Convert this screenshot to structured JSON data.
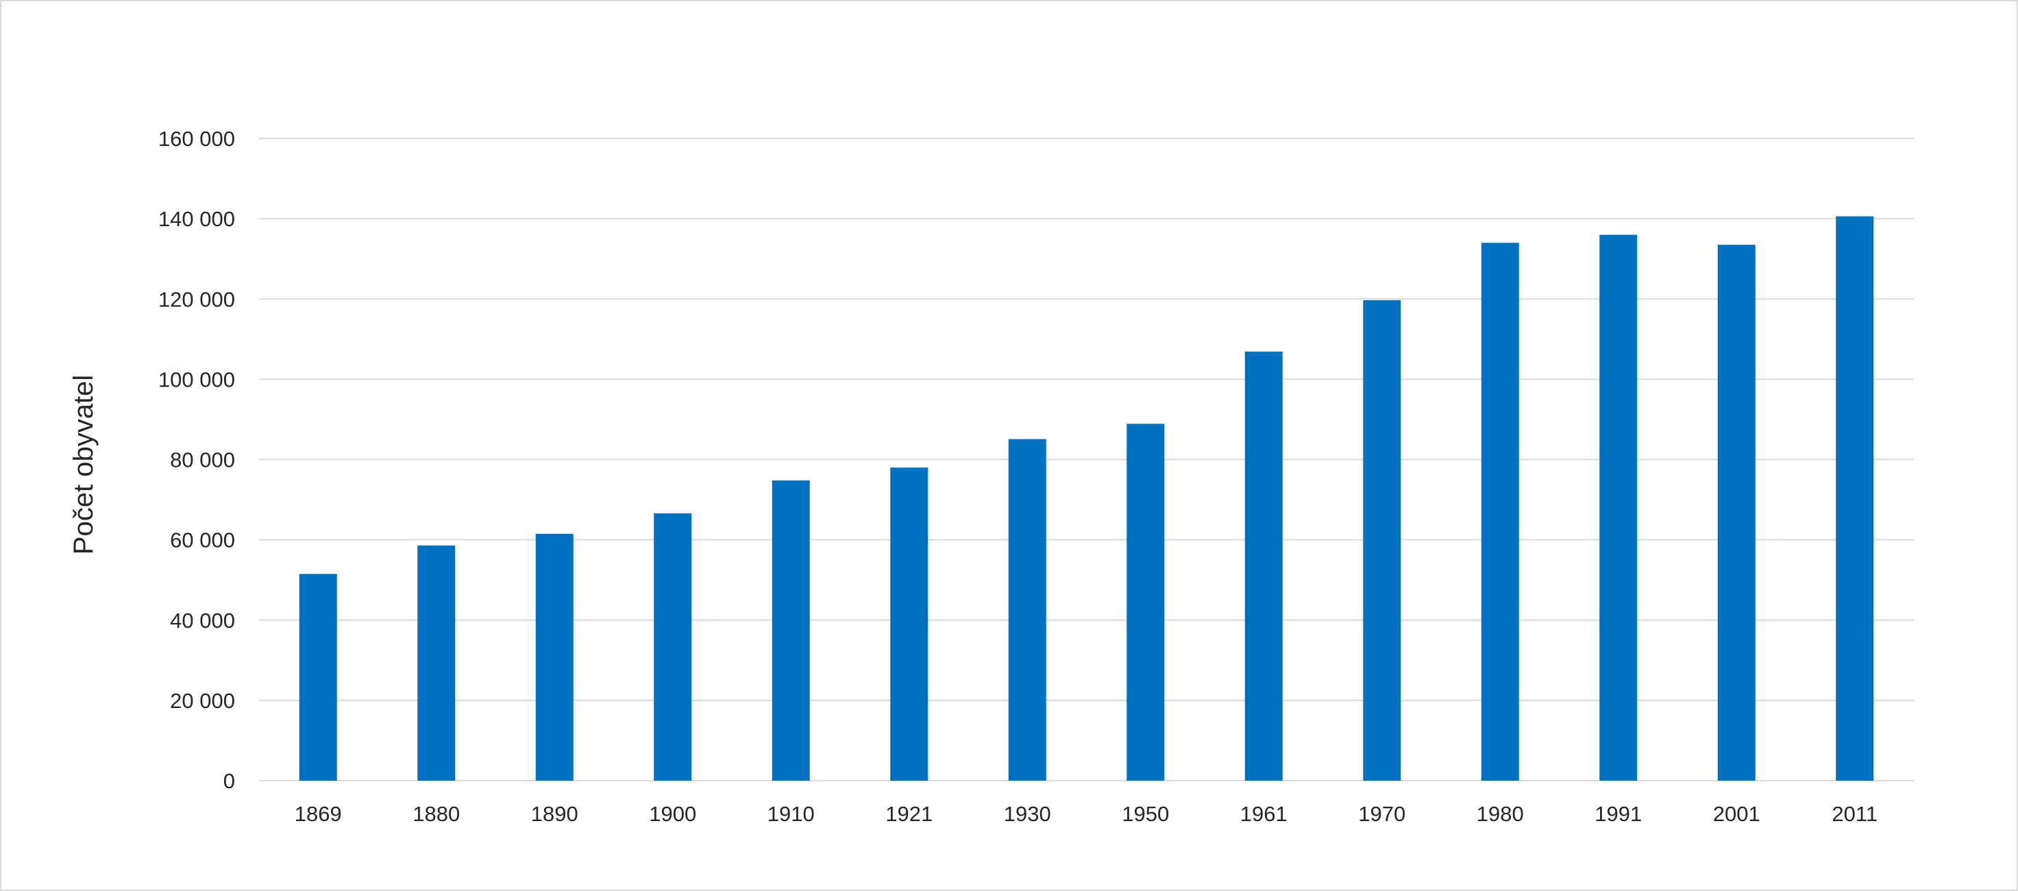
{
  "chart_data": {
    "type": "bar",
    "title": "",
    "xlabel": "",
    "ylabel": "Počet obyvatel",
    "categories": [
      "1869",
      "1880",
      "1890",
      "1900",
      "1910",
      "1921",
      "1930",
      "1950",
      "1961",
      "1970",
      "1980",
      "1991",
      "2001",
      "2011"
    ],
    "values": [
      51500,
      58600,
      61500,
      66600,
      74800,
      78000,
      85100,
      88900,
      106900,
      119700,
      134000,
      136000,
      133500,
      140600
    ],
    "ylim": [
      0,
      160000
    ],
    "yticks": [
      0,
      20000,
      40000,
      60000,
      80000,
      100000,
      120000,
      140000,
      160000
    ],
    "ytick_labels": [
      "0",
      "20 000",
      "40 000",
      "60 000",
      "80 000",
      "100 000",
      "120 000",
      "140 000",
      "160 000"
    ],
    "grid": true,
    "bar_color": "#0070C0",
    "grid_color": "#d9d9d9"
  }
}
